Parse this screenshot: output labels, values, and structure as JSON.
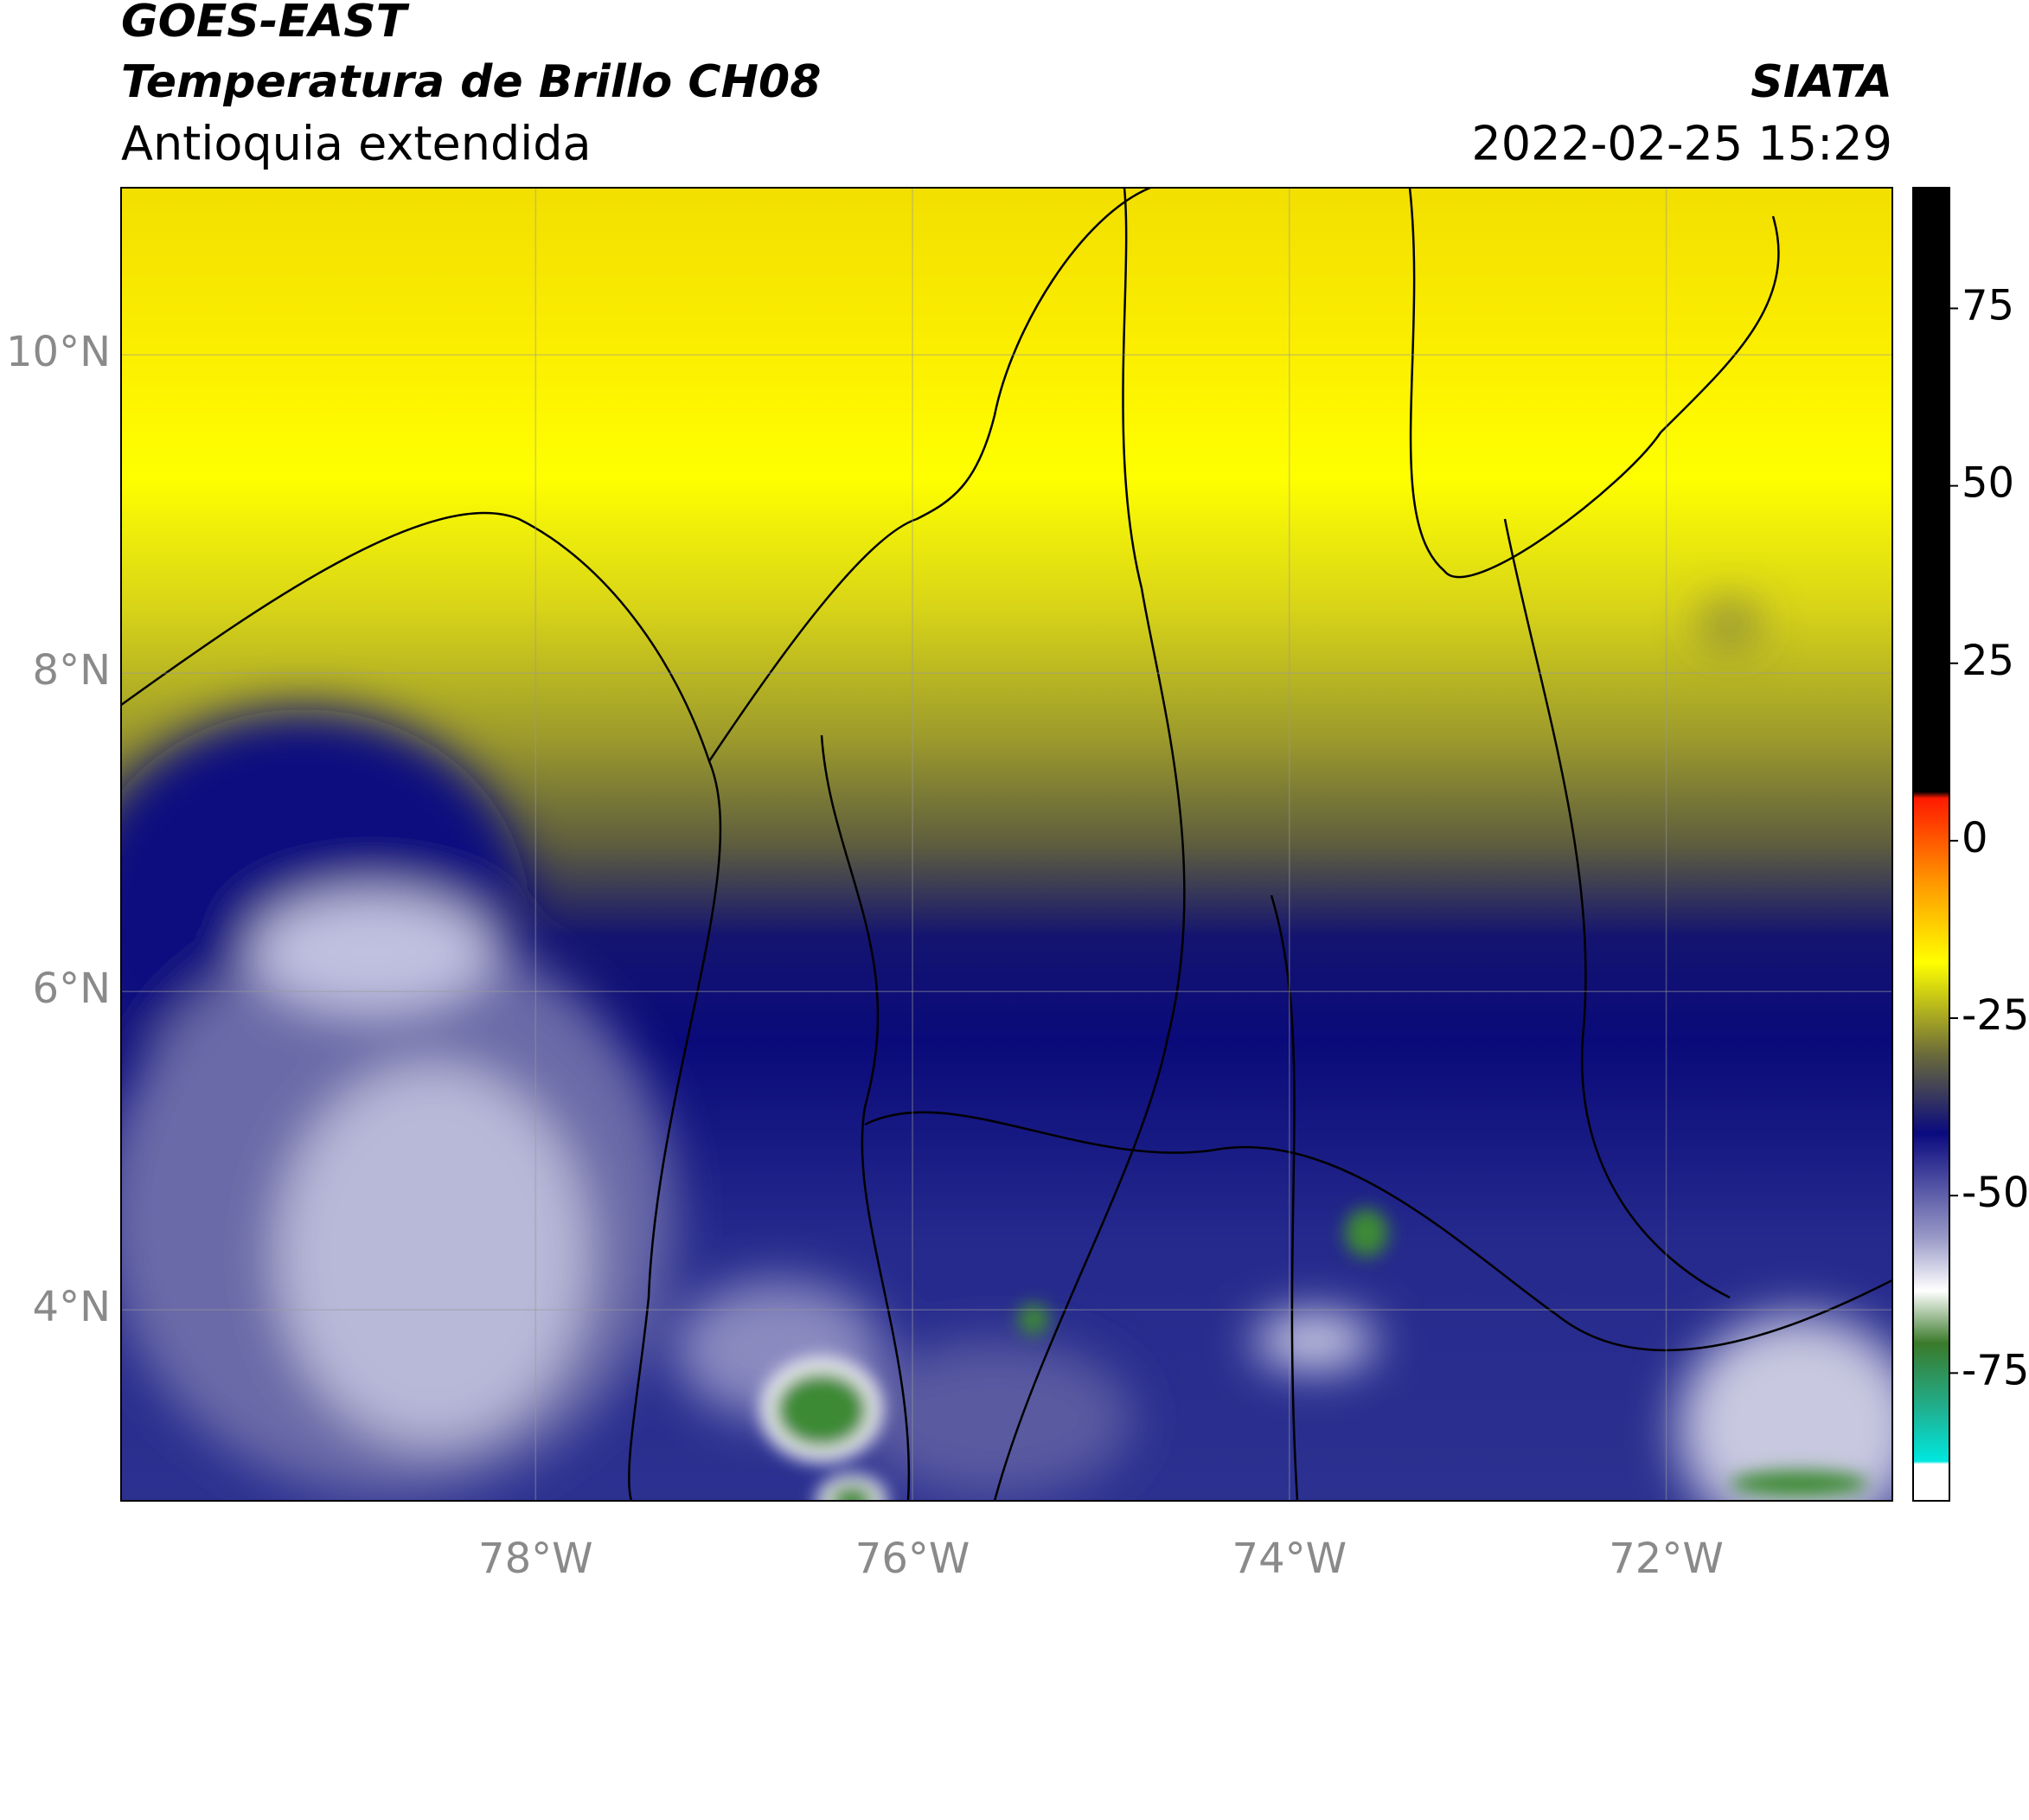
{
  "header": {
    "title": "GOES-EAST",
    "subtitle": "Temperatura de Brillo CH08",
    "region": "Antioquia extendida",
    "source": "SIATA",
    "datetime": "2022-02-25 15:29"
  },
  "map": {
    "xlim": [
      -80.2,
      -70.8
    ],
    "ylim": [
      2.8,
      11.05
    ],
    "xticks": [
      {
        "value": -78,
        "label": "78°W"
      },
      {
        "value": -76,
        "label": "76°W"
      },
      {
        "value": -74,
        "label": "74°W"
      },
      {
        "value": -72,
        "label": "72°W"
      }
    ],
    "yticks": [
      {
        "value": 10,
        "label": "10°N"
      },
      {
        "value": 8,
        "label": "8°N"
      },
      {
        "value": 6,
        "label": "6°N"
      },
      {
        "value": 4,
        "label": "4°N"
      }
    ],
    "grid": true
  },
  "colorbar": {
    "lim": [
      -93,
      92
    ],
    "ticks": [
      75,
      50,
      25,
      0,
      -25,
      -50,
      -75
    ]
  }
}
